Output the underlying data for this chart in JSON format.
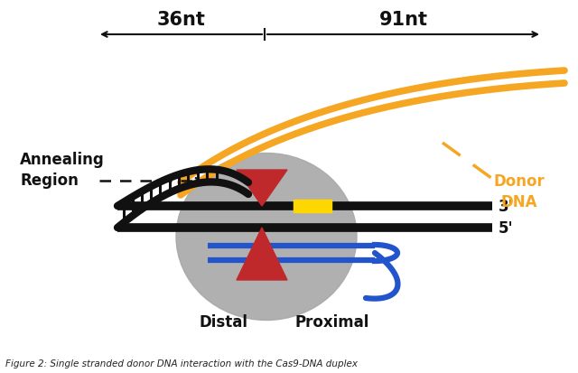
{
  "title": "Figure 2: Single stranded donor DNA interaction with the Cas9-DNA duplex",
  "label_36nt": "36nt",
  "label_91nt": "91nt",
  "label_annealing": "Annealing\nRegion",
  "label_donor": "Donor\nDNA",
  "label_3prime": "3'",
  "label_5prime": "5'",
  "label_distal": "Distal",
  "label_proximal": "Proximal",
  "bg_color": "#ffffff",
  "orange_color": "#F5A623",
  "black_color": "#111111",
  "gray_color": "#A8A8A8",
  "red_color": "#C0292B",
  "blue_color": "#2255CC",
  "yellow_color": "#FFD700"
}
